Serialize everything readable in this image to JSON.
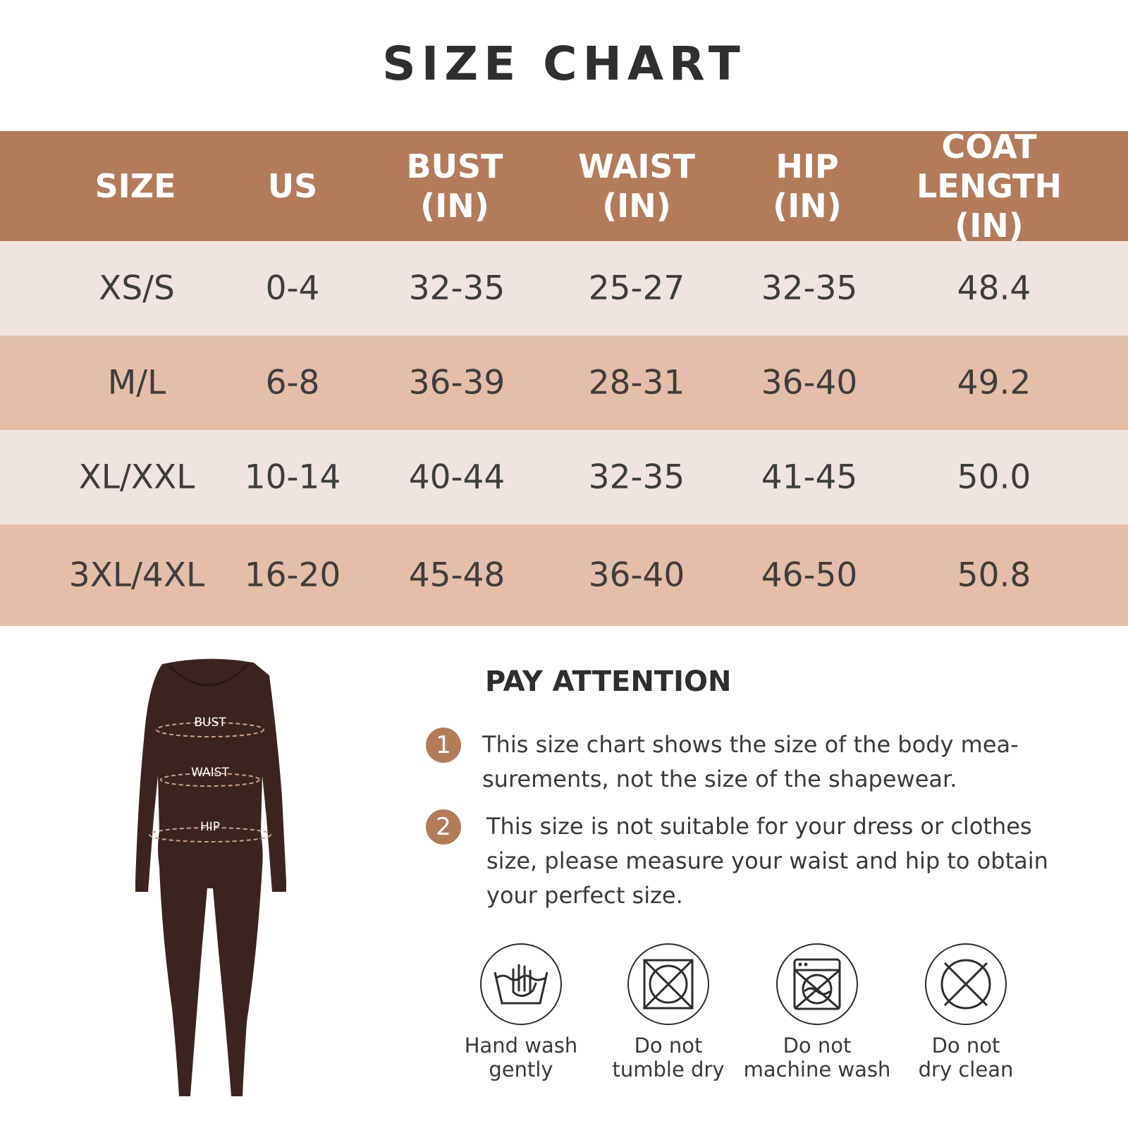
{
  "title": "SIZE CHART",
  "table": {
    "headers": [
      "SIZE",
      "US",
      "BUST\n(IN)",
      "WAIST\n(IN)",
      "HIP\n(IN)",
      "COAT LENGTH\n(IN)"
    ],
    "rows": [
      [
        "XS/S",
        "0-4",
        "32-35",
        "25-27",
        "32-35",
        "48.4"
      ],
      [
        "M/L",
        "6-8",
        "36-39",
        "28-31",
        "36-40",
        "49.2"
      ],
      [
        "XL/XXL",
        "10-14",
        "40-44",
        "32-35",
        "41-45",
        "50.0"
      ],
      [
        "3XL/4XL",
        "16-20",
        "45-48",
        "36-40",
        "46-50",
        "50.8"
      ]
    ]
  },
  "figure": {
    "labels": {
      "bust": "BUST",
      "waist": "WAIST",
      "hip": "HIP"
    }
  },
  "attention": {
    "title": "PAY ATTENTION",
    "notes": [
      {
        "num": "1",
        "text": "This size chart shows the size of the body mea-\nsurements, not the size of the shapewear."
      },
      {
        "num": "2",
        "text": "This size is not suitable for your dress or clothes\nsize, please measure your waist and hip to obtain\nyour perfect size."
      }
    ]
  },
  "care": [
    {
      "icon": "hand-wash-icon",
      "label": "Hand wash\ngently"
    },
    {
      "icon": "no-tumble-dry-icon",
      "label": "Do not\ntumble dry"
    },
    {
      "icon": "no-machine-wash-icon",
      "label": "Do not\nmachine wash"
    },
    {
      "icon": "no-dry-clean-icon",
      "label": "Do not\ndry clean"
    }
  ],
  "colors": {
    "header": "#b47b58",
    "row_light": "#f0e4e0",
    "row_dark": "#e5bea9",
    "garment": "#3b2420"
  }
}
